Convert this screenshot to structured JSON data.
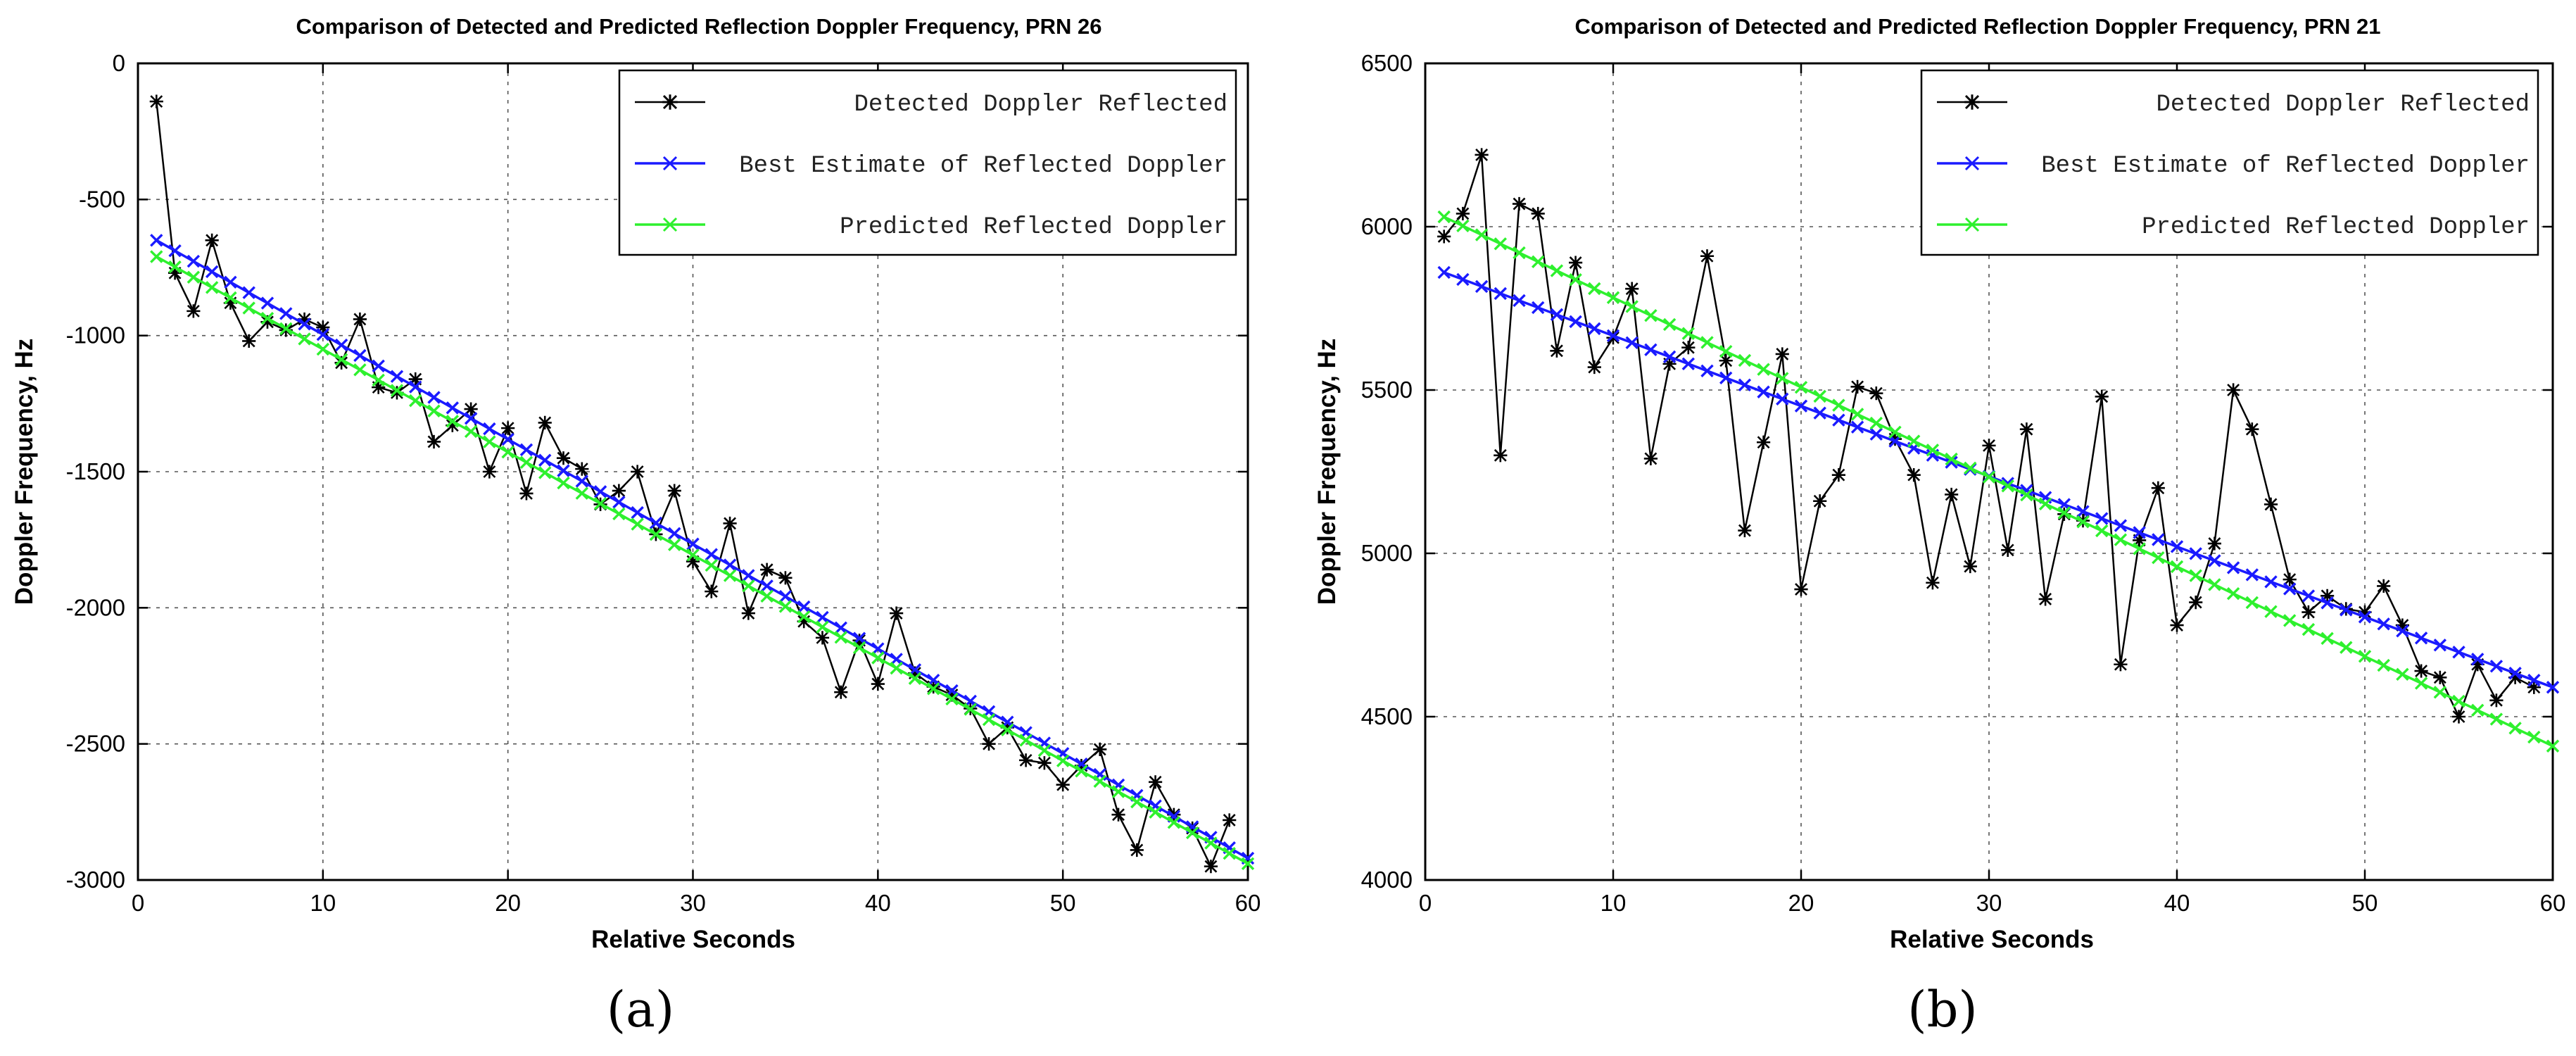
{
  "chart_data": [
    {
      "type": "line",
      "panel_label": "(a)",
      "title": "Comparison of Detected and Predicted Reflection Doppler Frequency, PRN 26",
      "xlabel": "Relative Seconds",
      "ylabel": "Doppler Frequency, Hz",
      "xlim": [
        0,
        60
      ],
      "ylim": [
        -3000,
        0
      ],
      "xticks": [
        0,
        10,
        20,
        30,
        40,
        50,
        60
      ],
      "xtick_labels": [
        "0",
        "10",
        "20",
        "30",
        "40",
        "50",
        "60"
      ],
      "yticks": [
        0,
        -500,
        -1000,
        -1500,
        -2000,
        -2500,
        -3000
      ],
      "ytick_labels": [
        "0",
        "-500",
        "-1000",
        "-1500",
        "-2000",
        "-2500",
        "-3000"
      ],
      "grid": true,
      "legend_position": "top-right",
      "series": [
        {
          "name": "Detected Doppler Reflected",
          "color": "#000000",
          "marker": "star",
          "x": [
            1,
            2,
            3,
            4,
            5,
            6,
            7,
            8,
            9,
            10,
            11,
            12,
            13,
            14,
            15,
            16,
            17,
            18,
            19,
            20,
            21,
            22,
            23,
            24,
            25,
            26,
            27,
            28,
            29,
            30,
            31,
            32,
            33,
            34,
            35,
            36,
            37,
            38,
            39,
            40,
            41,
            42,
            43,
            44,
            45,
            46,
            47,
            48,
            49,
            50,
            51,
            52,
            53,
            54,
            55,
            56,
            57,
            58,
            59
          ],
          "y": [
            -140,
            -770,
            -910,
            -650,
            -880,
            -1020,
            -950,
            -980,
            -940,
            -970,
            -1100,
            -940,
            -1190,
            -1210,
            -1160,
            -1390,
            -1330,
            -1270,
            -1500,
            -1340,
            -1580,
            -1320,
            -1450,
            -1490,
            -1620,
            -1570,
            -1500,
            -1730,
            -1570,
            -1830,
            -1940,
            -1690,
            -2020,
            -1860,
            -1890,
            -2050,
            -2110,
            -2310,
            -2120,
            -2280,
            -2020,
            -2240,
            -2290,
            -2320,
            -2370,
            -2500,
            -2440,
            -2560,
            -2570,
            -2650,
            -2580,
            -2520,
            -2760,
            -2890,
            -2640,
            -2760,
            -2810,
            -2950,
            -2780
          ]
        },
        {
          "name": "Best Estimate of Reflected Doppler",
          "color": "#1a1aff",
          "marker": "x",
          "x": [
            1,
            60
          ],
          "y": [
            -650,
            -2920
          ]
        },
        {
          "name": "Predicted Reflected Doppler",
          "color": "#2ef02e",
          "marker": "x",
          "x": [
            1,
            60
          ],
          "y": [
            -710,
            -2940
          ]
        }
      ]
    },
    {
      "type": "line",
      "panel_label": "(b)",
      "title": "Comparison of Detected and Predicted Reflection Doppler Frequency, PRN 21",
      "xlabel": "Relative Seconds",
      "ylabel": "Doppler Frequency, Hz",
      "xlim": [
        0,
        60
      ],
      "ylim": [
        4000,
        6500
      ],
      "xticks": [
        0,
        10,
        20,
        30,
        40,
        50,
        60
      ],
      "xtick_labels": [
        "0",
        "10",
        "20",
        "30",
        "40",
        "50",
        "60"
      ],
      "yticks": [
        6500,
        6000,
        5500,
        5000,
        4500,
        4000
      ],
      "ytick_labels": [
        "6500",
        "6000",
        "5500",
        "5000",
        "4500",
        "4000"
      ],
      "grid": true,
      "legend_position": "top-right",
      "series": [
        {
          "name": "Detected Doppler Reflected",
          "color": "#000000",
          "marker": "star",
          "x": [
            1,
            2,
            3,
            4,
            5,
            6,
            7,
            8,
            9,
            10,
            11,
            12,
            13,
            14,
            15,
            16,
            17,
            18,
            19,
            20,
            21,
            22,
            23,
            24,
            25,
            26,
            27,
            28,
            29,
            30,
            31,
            32,
            33,
            34,
            35,
            36,
            37,
            38,
            39,
            40,
            41,
            42,
            43,
            44,
            45,
            46,
            47,
            48,
            49,
            50,
            51,
            52,
            53,
            54,
            55,
            56,
            57,
            58,
            59
          ],
          "y": [
            5970,
            6040,
            6220,
            5300,
            6070,
            6040,
            5620,
            5890,
            5570,
            5660,
            5810,
            5290,
            5580,
            5630,
            5910,
            5590,
            5070,
            5340,
            5610,
            4890,
            5160,
            5240,
            5510,
            5490,
            5350,
            5240,
            4910,
            5180,
            4960,
            5330,
            5010,
            5380,
            4860,
            5120,
            5100,
            5480,
            4660,
            5040,
            5200,
            4780,
            4850,
            5030,
            5500,
            5380,
            5150,
            4920,
            4820,
            4870,
            4830,
            4820,
            4900,
            4780,
            4640,
            4620,
            4500,
            4660,
            4550,
            4620,
            4590
          ]
        },
        {
          "name": "Best Estimate of Reflected Doppler",
          "color": "#1a1aff",
          "marker": "x",
          "x": [
            1,
            60
          ],
          "y": [
            5860,
            4590
          ]
        },
        {
          "name": "Predicted Reflected Doppler",
          "color": "#2ef02e",
          "marker": "x",
          "x": [
            1,
            60
          ],
          "y": [
            6030,
            4410
          ]
        }
      ]
    }
  ]
}
